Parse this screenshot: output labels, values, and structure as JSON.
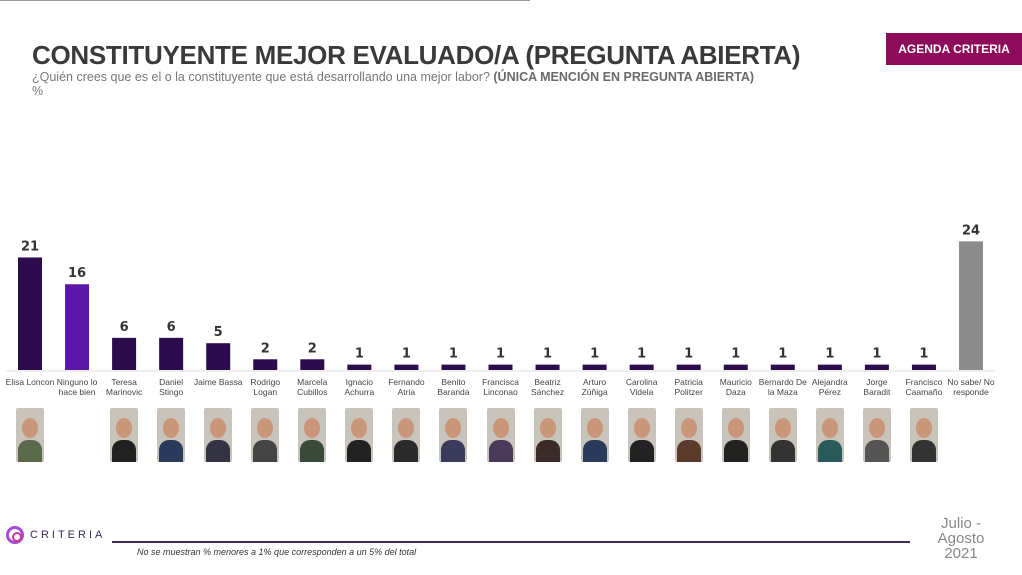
{
  "header": {
    "title": "CONSTITUYENTE MEJOR EVALUADO/A (PREGUNTA ABIERTA)",
    "subtitle": "¿Quién crees que es el o la constituyente que está desarrollando una mejor labor? ",
    "subtitle_bold": "(ÚNICA MENCIÓN EN PREGUNTA ABIERTA)",
    "unit": "%",
    "badge": "AGENDA CRITERIA"
  },
  "chart_data": {
    "type": "bar",
    "title": "CONSTITUYENTE MEJOR EVALUADO/A (PREGUNTA ABIERTA)",
    "ylabel": "%",
    "ylim": [
      0,
      25
    ],
    "categories": [
      "Elisa Loncon",
      "Ninguno lo hace bien",
      "Teresa Marinovic",
      "Daniel Stingo",
      "Jaime Bassa",
      "Rodrigo Logan",
      "Marcela Cubillos",
      "Ignacio Achurra",
      "Fernando Atria",
      "Benito Baranda",
      "Francisca Linconao",
      "Beatriz Sánchez",
      "Arturo Zúñiga",
      "Carolina Videla",
      "Patricia Politzer",
      "Mauricio Daza",
      "Bernardo De la Maza",
      "Alejandra Pérez",
      "Jorge Baradit",
      "Francisco Caamaño",
      "No sabe/ No responde"
    ],
    "values": [
      21,
      16,
      6,
      6,
      5,
      2,
      2,
      1,
      1,
      1,
      1,
      1,
      1,
      1,
      1,
      1,
      1,
      1,
      1,
      1,
      24
    ],
    "colors": {
      "default": "#2d0c4e",
      "ninguno": "#5a16a6",
      "no_responde": "#8c8c8c"
    }
  },
  "footer": {
    "logo": "CRITERIA",
    "note": "No se muestran % menores a 1% que corresponden a un 5% del total",
    "date": "Julio - Agosto 2021"
  }
}
